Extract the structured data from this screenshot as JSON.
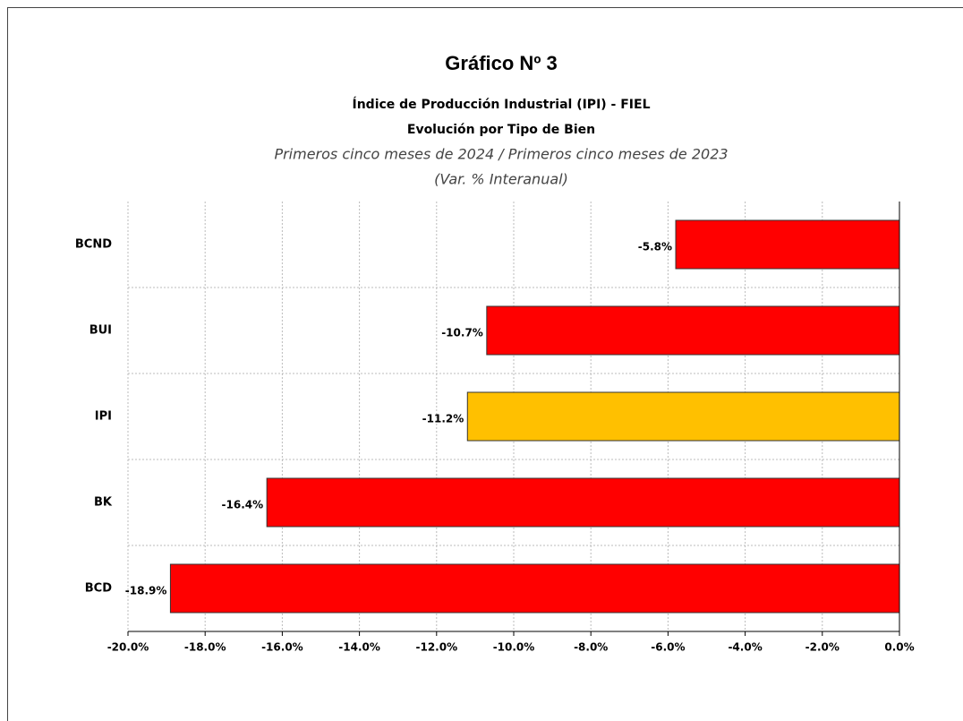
{
  "chart_data": {
    "type": "hbar",
    "title": "Gráfico Nº 3",
    "subtitle": [
      "Índice de Producción Industrial (IPI) - FIEL",
      "Evolución por Tipo de Bien",
      "Primeros cinco meses de 2024 / Primeros cinco meses de 2023",
      "(Var. % Interanual)"
    ],
    "categories": [
      "BCND",
      "BUI",
      "IPI",
      "BK",
      "BCD"
    ],
    "values": [
      -5.8,
      -10.7,
      -11.2,
      -16.4,
      -18.9
    ],
    "value_labels": [
      "-5.8%",
      "-10.7%",
      "-11.2%",
      "-16.4%",
      "-18.9%"
    ],
    "colors": [
      "#ff0000",
      "#ff0000",
      "#ffc000",
      "#ff0000",
      "#ff0000"
    ],
    "xlim": [
      -20,
      0
    ],
    "xticks": [
      {
        "value": -20,
        "label": "-20.0%"
      },
      {
        "value": -18,
        "label": "-18.0%"
      },
      {
        "value": -16,
        "label": "-16.0%"
      },
      {
        "value": -14,
        "label": "-14.0%"
      },
      {
        "value": -12,
        "label": "-12.0%"
      },
      {
        "value": -10,
        "label": "-10.0%"
      },
      {
        "value": -8,
        "label": "-8.0%"
      },
      {
        "value": -6,
        "label": "-6.0%"
      },
      {
        "value": -4,
        "label": "-4.0%"
      },
      {
        "value": -2,
        "label": "-2.0%"
      },
      {
        "value": 0,
        "label": "0.0%"
      }
    ],
    "grid": true
  }
}
